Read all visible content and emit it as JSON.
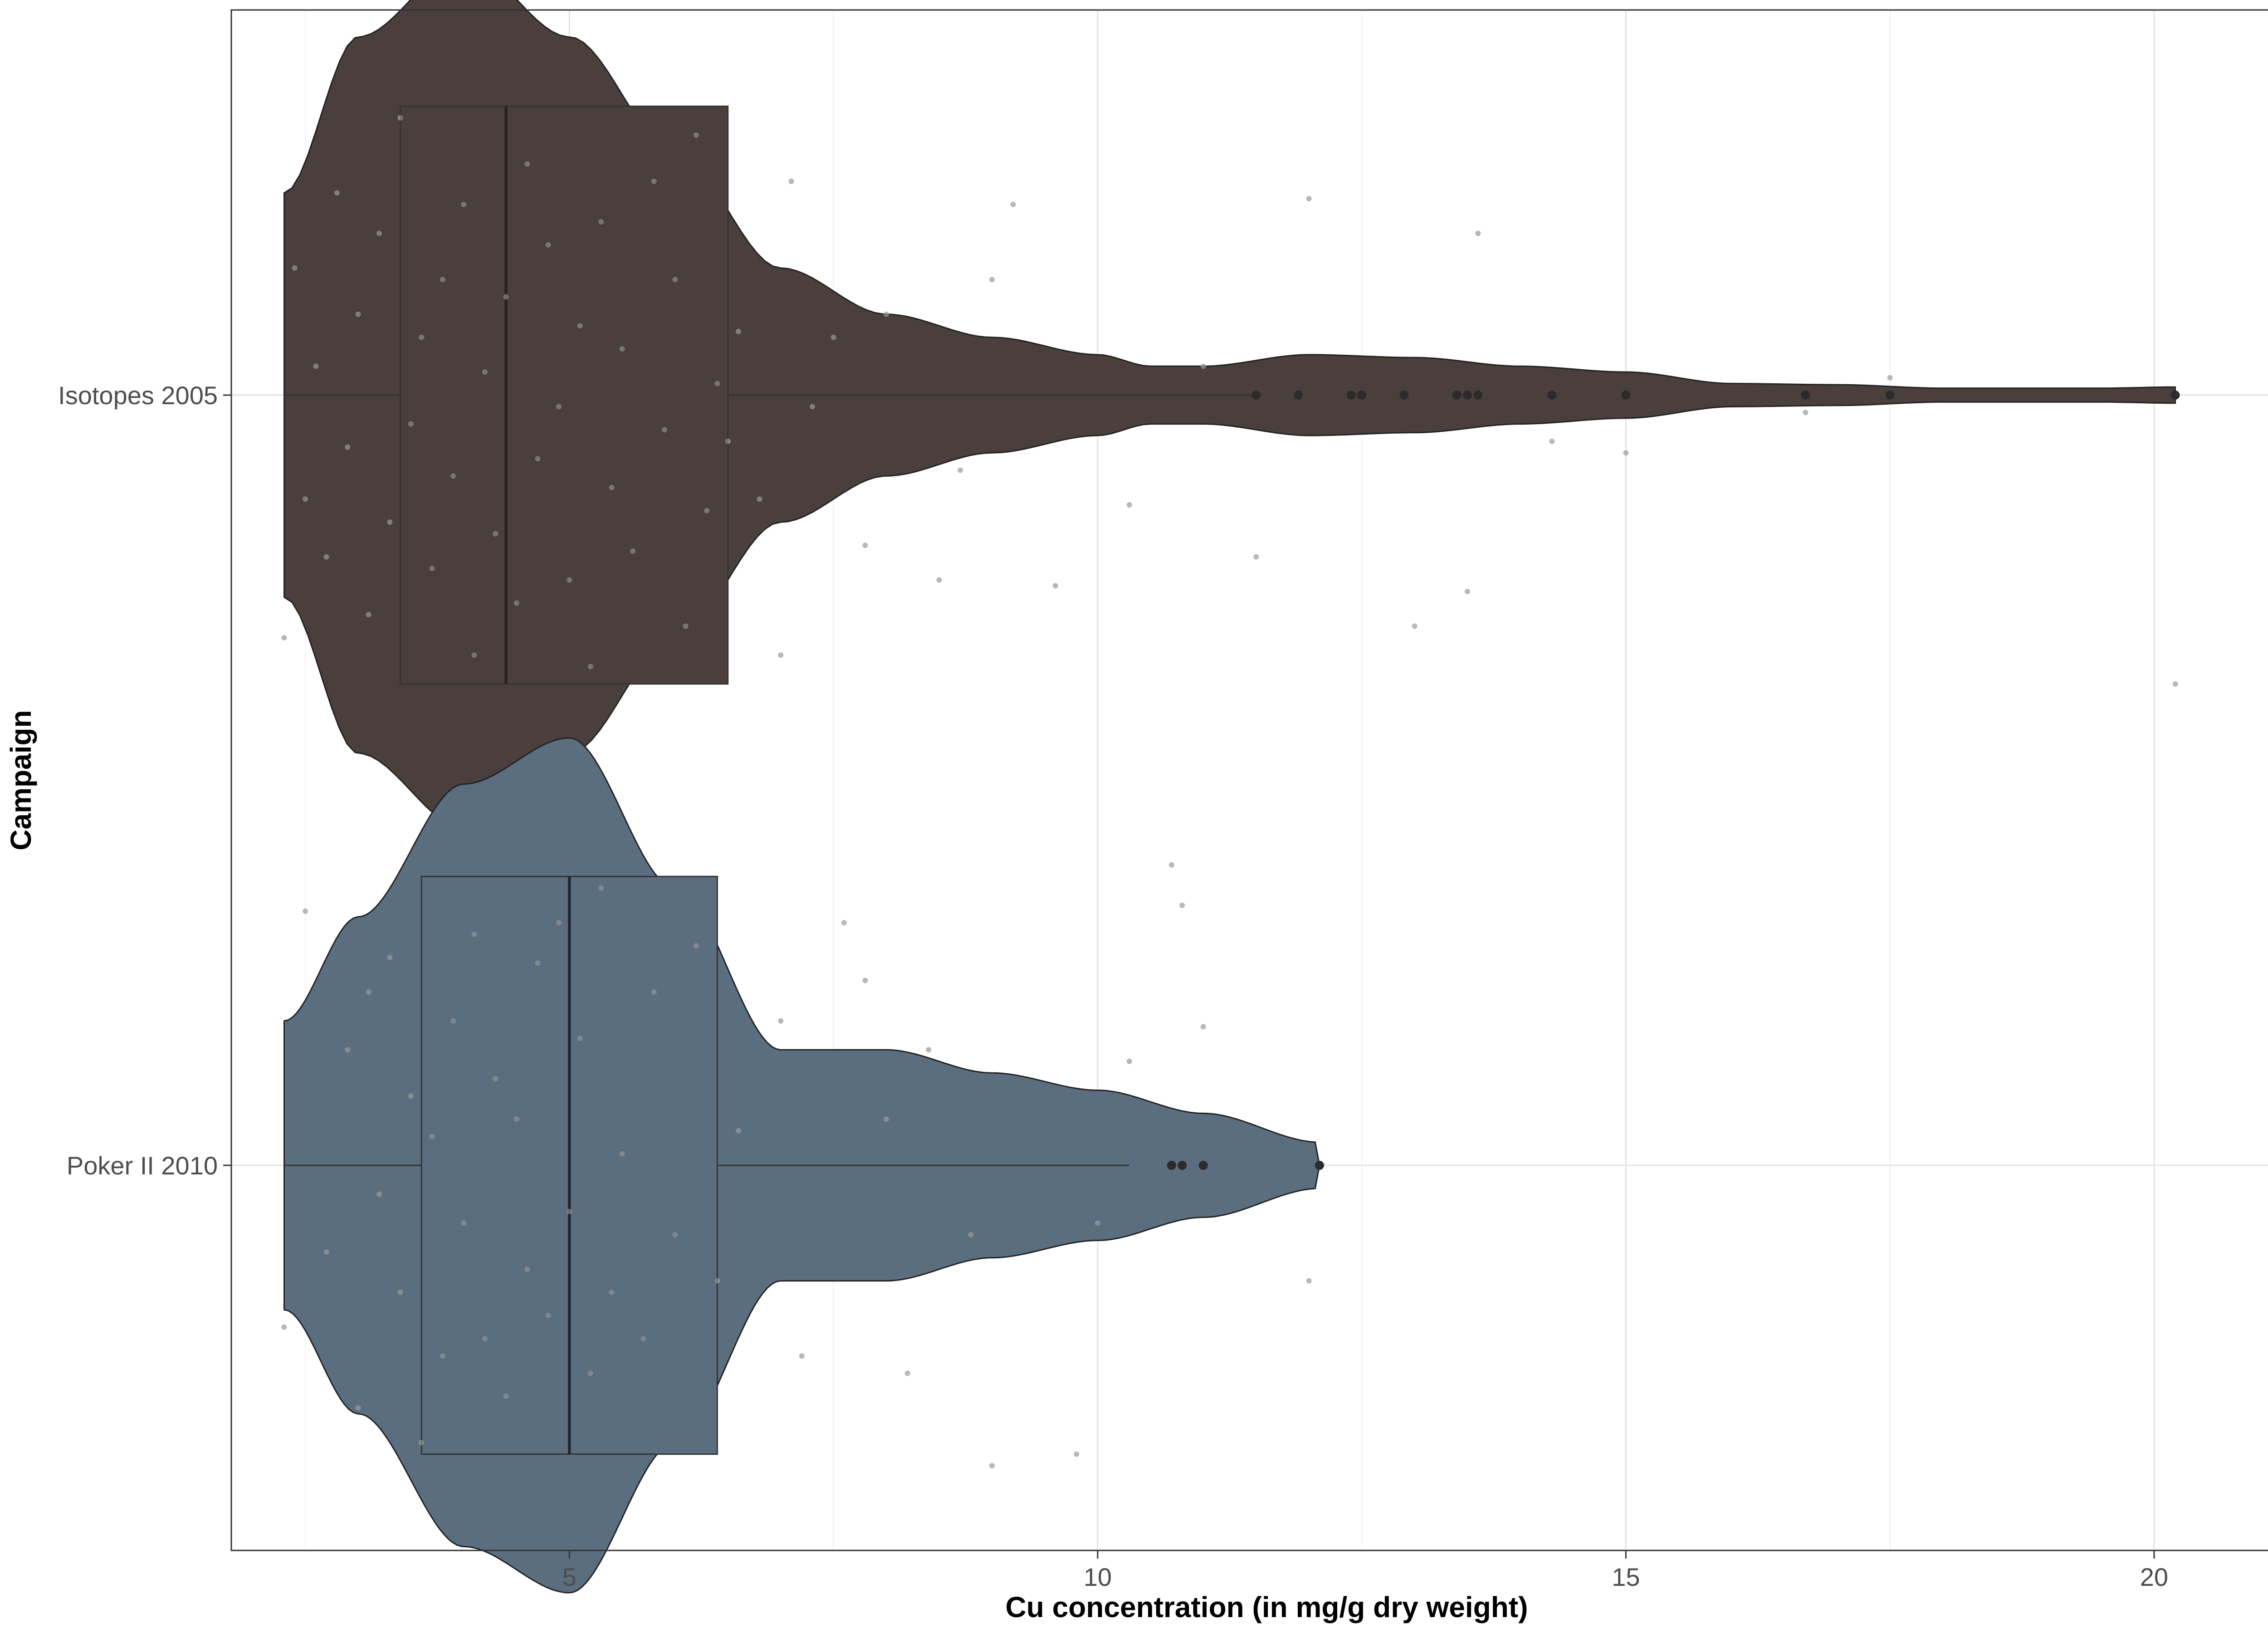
{
  "chart_data": {
    "type": "violin",
    "orientation": "horizontal",
    "xlabel": "Cu concentration (in mg/g dry weight)",
    "ylabel": "Campaign",
    "xlim": [
      1.8,
      21.4
    ],
    "x_ticks": [
      5,
      10,
      15,
      20
    ],
    "grid": true,
    "legend": "none",
    "categories": [
      "Isotopes 2005",
      "Poker II 2010"
    ],
    "series": [
      {
        "name": "Isotopes 2005",
        "color": "#4a3f3d",
        "box": {
          "whisker_low": 2.3,
          "q1": 3.4,
          "median": 4.4,
          "q3": 6.5,
          "whisker_high": 11.5
        },
        "outliers": [
          11.5,
          11.9,
          12.4,
          12.5,
          12.9,
          13.4,
          13.5,
          13.6,
          14.3,
          15.0,
          16.7,
          17.5,
          20.2
        ],
        "density": [
          [
            2.3,
            0.35
          ],
          [
            3.0,
            0.62
          ],
          [
            4.0,
            0.75
          ],
          [
            5.0,
            0.62
          ],
          [
            6.0,
            0.42
          ],
          [
            7.0,
            0.22
          ],
          [
            8.0,
            0.14
          ],
          [
            9.0,
            0.1
          ],
          [
            10.0,
            0.07
          ],
          [
            10.5,
            0.05
          ],
          [
            11.0,
            0.05
          ],
          [
            12.0,
            0.07
          ],
          [
            13.0,
            0.065
          ],
          [
            14.0,
            0.05
          ],
          [
            15.0,
            0.04
          ],
          [
            16.0,
            0.02
          ],
          [
            17.0,
            0.018
          ],
          [
            18.0,
            0.012
          ],
          [
            19.5,
            0.012
          ],
          [
            20.2,
            0.014
          ]
        ]
      },
      {
        "name": "Poker II 2010",
        "color": "#5a6e7f",
        "box": {
          "whisker_low": 2.3,
          "q1": 3.6,
          "median": 5.0,
          "q3": 6.4,
          "whisker_high": 10.3
        },
        "outliers": [
          10.7,
          10.8,
          11.0,
          12.1
        ],
        "density": [
          [
            2.3,
            0.25
          ],
          [
            3.0,
            0.43
          ],
          [
            4.0,
            0.66
          ],
          [
            5.0,
            0.74
          ],
          [
            6.0,
            0.48
          ],
          [
            7.0,
            0.2
          ],
          [
            8.0,
            0.2
          ],
          [
            9.0,
            0.16
          ],
          [
            10.0,
            0.13
          ],
          [
            11.0,
            0.09
          ],
          [
            12.1,
            0.04
          ]
        ]
      }
    ],
    "jitter_points": [
      {
        "g": 0,
        "x": 2.3,
        "o": 0.42
      },
      {
        "g": 0,
        "x": 2.4,
        "o": -0.22
      },
      {
        "g": 0,
        "x": 2.5,
        "o": 0.18
      },
      {
        "g": 0,
        "x": 2.6,
        "o": -0.05
      },
      {
        "g": 0,
        "x": 2.7,
        "o": 0.28
      },
      {
        "g": 0,
        "x": 2.8,
        "o": -0.35
      },
      {
        "g": 0,
        "x": 2.9,
        "o": 0.09
      },
      {
        "g": 0,
        "x": 3.0,
        "o": -0.14
      },
      {
        "g": 0,
        "x": 3.1,
        "o": 0.38
      },
      {
        "g": 0,
        "x": 3.2,
        "o": -0.28
      },
      {
        "g": 0,
        "x": 3.3,
        "o": 0.22
      },
      {
        "g": 0,
        "x": 3.4,
        "o": -0.48
      },
      {
        "g": 0,
        "x": 3.5,
        "o": 0.05
      },
      {
        "g": 0,
        "x": 3.6,
        "o": -0.1
      },
      {
        "g": 0,
        "x": 3.7,
        "o": 0.3
      },
      {
        "g": 0,
        "x": 3.8,
        "o": -0.2
      },
      {
        "g": 0,
        "x": 3.9,
        "o": 0.14
      },
      {
        "g": 0,
        "x": 4.0,
        "o": -0.33
      },
      {
        "g": 0,
        "x": 4.1,
        "o": 0.45
      },
      {
        "g": 0,
        "x": 4.2,
        "o": -0.04
      },
      {
        "g": 0,
        "x": 4.3,
        "o": 0.24
      },
      {
        "g": 0,
        "x": 4.4,
        "o": -0.17
      },
      {
        "g": 0,
        "x": 4.5,
        "o": 0.36
      },
      {
        "g": 0,
        "x": 4.6,
        "o": -0.4
      },
      {
        "g": 0,
        "x": 4.7,
        "o": 0.11
      },
      {
        "g": 0,
        "x": 4.8,
        "o": -0.26
      },
      {
        "g": 0,
        "x": 4.9,
        "o": 0.02
      },
      {
        "g": 0,
        "x": 5.0,
        "o": 0.32
      },
      {
        "g": 0,
        "x": 5.1,
        "o": -0.12
      },
      {
        "g": 0,
        "x": 5.2,
        "o": 0.47
      },
      {
        "g": 0,
        "x": 5.3,
        "o": -0.3
      },
      {
        "g": 0,
        "x": 5.4,
        "o": 0.16
      },
      {
        "g": 0,
        "x": 5.5,
        "o": -0.08
      },
      {
        "g": 0,
        "x": 5.6,
        "o": 0.27
      },
      {
        "g": 0,
        "x": 5.8,
        "o": -0.37
      },
      {
        "g": 0,
        "x": 5.9,
        "o": 0.06
      },
      {
        "g": 0,
        "x": 6.0,
        "o": -0.2
      },
      {
        "g": 0,
        "x": 6.1,
        "o": 0.4
      },
      {
        "g": 0,
        "x": 6.2,
        "o": -0.45
      },
      {
        "g": 0,
        "x": 6.3,
        "o": 0.2
      },
      {
        "g": 0,
        "x": 6.4,
        "o": -0.02
      },
      {
        "g": 0,
        "x": 6.5,
        "o": 0.08
      },
      {
        "g": 0,
        "x": 6.6,
        "o": -0.11
      },
      {
        "g": 0,
        "x": 6.8,
        "o": 0.18
      },
      {
        "g": 0,
        "x": 7.0,
        "o": 0.45
      },
      {
        "g": 0,
        "x": 7.1,
        "o": -0.37
      },
      {
        "g": 0,
        "x": 7.3,
        "o": 0.02
      },
      {
        "g": 0,
        "x": 7.5,
        "o": -0.1
      },
      {
        "g": 0,
        "x": 7.8,
        "o": 0.26
      },
      {
        "g": 0,
        "x": 8.0,
        "o": -0.14
      },
      {
        "g": 0,
        "x": 8.5,
        "o": 0.32
      },
      {
        "g": 0,
        "x": 8.7,
        "o": 0.13
      },
      {
        "g": 0,
        "x": 9.0,
        "o": -0.2
      },
      {
        "g": 0,
        "x": 9.2,
        "o": -0.33
      },
      {
        "g": 0,
        "x": 9.6,
        "o": 0.33
      },
      {
        "g": 0,
        "x": 10.3,
        "o": 0.19
      },
      {
        "g": 0,
        "x": 11.0,
        "o": -0.05
      },
      {
        "g": 0,
        "x": 11.5,
        "o": 0.28
      },
      {
        "g": 0,
        "x": 12.0,
        "o": -0.34
      },
      {
        "g": 0,
        "x": 13.0,
        "o": 0.4
      },
      {
        "g": 0,
        "x": 13.5,
        "o": 0.34
      },
      {
        "g": 0,
        "x": 13.6,
        "o": -0.28
      },
      {
        "g": 0,
        "x": 14.3,
        "o": 0.08
      },
      {
        "g": 0,
        "x": 15.0,
        "o": 0.1
      },
      {
        "g": 0,
        "x": 16.7,
        "o": 0.03
      },
      {
        "g": 0,
        "x": 17.5,
        "o": -0.03
      },
      {
        "g": 0,
        "x": 20.2,
        "o": 0.5
      },
      {
        "g": 1,
        "x": 2.3,
        "o": 0.28
      },
      {
        "g": 1,
        "x": 2.5,
        "o": -0.44
      },
      {
        "g": 1,
        "x": 2.7,
        "o": 0.15
      },
      {
        "g": 1,
        "x": 2.9,
        "o": -0.2
      },
      {
        "g": 1,
        "x": 3.0,
        "o": 0.42
      },
      {
        "g": 1,
        "x": 3.1,
        "o": -0.3
      },
      {
        "g": 1,
        "x": 3.2,
        "o": 0.05
      },
      {
        "g": 1,
        "x": 3.3,
        "o": -0.36
      },
      {
        "g": 1,
        "x": 3.4,
        "o": 0.22
      },
      {
        "g": 1,
        "x": 3.5,
        "o": -0.12
      },
      {
        "g": 1,
        "x": 3.6,
        "o": 0.48
      },
      {
        "g": 1,
        "x": 3.7,
        "o": -0.05
      },
      {
        "g": 1,
        "x": 3.8,
        "o": 0.33
      },
      {
        "g": 1,
        "x": 3.9,
        "o": -0.25
      },
      {
        "g": 1,
        "x": 4.0,
        "o": 0.1
      },
      {
        "g": 1,
        "x": 4.1,
        "o": -0.4
      },
      {
        "g": 1,
        "x": 4.2,
        "o": 0.3
      },
      {
        "g": 1,
        "x": 4.3,
        "o": -0.15
      },
      {
        "g": 1,
        "x": 4.4,
        "o": 0.4
      },
      {
        "g": 1,
        "x": 4.5,
        "o": -0.08
      },
      {
        "g": 1,
        "x": 4.6,
        "o": 0.18
      },
      {
        "g": 1,
        "x": 4.7,
        "o": -0.35
      },
      {
        "g": 1,
        "x": 4.8,
        "o": 0.26
      },
      {
        "g": 1,
        "x": 4.9,
        "o": -0.42
      },
      {
        "g": 1,
        "x": 5.0,
        "o": 0.08
      },
      {
        "g": 1,
        "x": 5.1,
        "o": -0.22
      },
      {
        "g": 1,
        "x": 5.2,
        "o": 0.36
      },
      {
        "g": 1,
        "x": 5.3,
        "o": -0.48
      },
      {
        "g": 1,
        "x": 5.4,
        "o": 0.22
      },
      {
        "g": 1,
        "x": 5.5,
        "o": -0.02
      },
      {
        "g": 1,
        "x": 5.7,
        "o": 0.3
      },
      {
        "g": 1,
        "x": 5.8,
        "o": -0.3
      },
      {
        "g": 1,
        "x": 6.0,
        "o": 0.12
      },
      {
        "g": 1,
        "x": 6.2,
        "o": -0.38
      },
      {
        "g": 1,
        "x": 6.4,
        "o": 0.2
      },
      {
        "g": 1,
        "x": 6.6,
        "o": -0.06
      },
      {
        "g": 1,
        "x": 7.0,
        "o": -0.25
      },
      {
        "g": 1,
        "x": 7.2,
        "o": 0.33
      },
      {
        "g": 1,
        "x": 7.6,
        "o": -0.42
      },
      {
        "g": 1,
        "x": 7.8,
        "o": -0.32
      },
      {
        "g": 1,
        "x": 8.0,
        "o": -0.08
      },
      {
        "g": 1,
        "x": 8.2,
        "o": 0.36
      },
      {
        "g": 1,
        "x": 8.4,
        "o": -0.2
      },
      {
        "g": 1,
        "x": 8.8,
        "o": 0.12
      },
      {
        "g": 1,
        "x": 9.0,
        "o": 0.52
      },
      {
        "g": 1,
        "x": 9.8,
        "o": 0.5
      },
      {
        "g": 1,
        "x": 10.0,
        "o": 0.1
      },
      {
        "g": 1,
        "x": 10.3,
        "o": -0.18
      },
      {
        "g": 1,
        "x": 10.7,
        "o": -0.52
      },
      {
        "g": 1,
        "x": 10.8,
        "o": -0.45
      },
      {
        "g": 1,
        "x": 11.0,
        "o": -0.24
      },
      {
        "g": 1,
        "x": 12.0,
        "o": 0.2
      }
    ]
  }
}
